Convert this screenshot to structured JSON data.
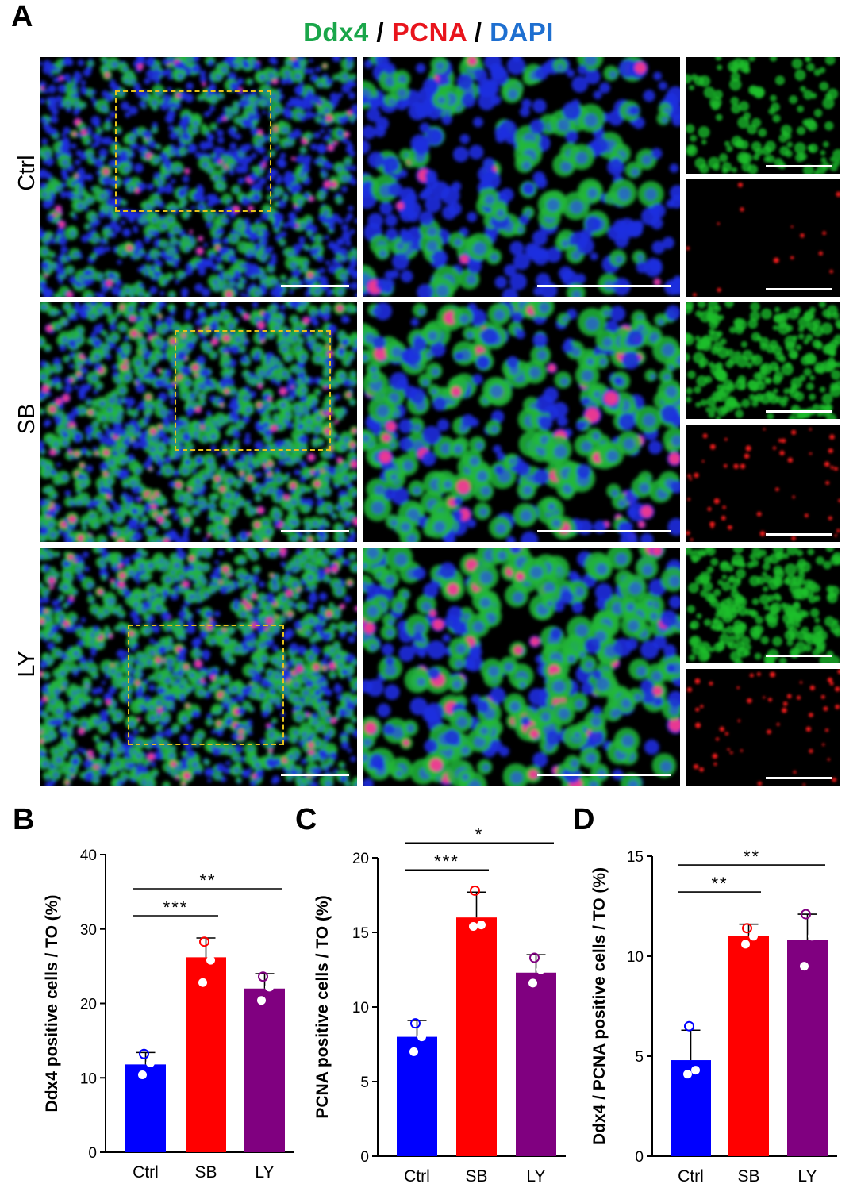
{
  "figure": {
    "panel_labels": [
      "A",
      "B",
      "C",
      "D"
    ],
    "header": {
      "parts": [
        {
          "text": "Ddx4",
          "color": "#1aa64a"
        },
        {
          "text": " / ",
          "color": "#000000"
        },
        {
          "text": "PCNA",
          "color": "#e8141c"
        },
        {
          "text": " / ",
          "color": "#000000"
        },
        {
          "text": "DAPI",
          "color": "#1e6fd0"
        }
      ]
    },
    "row_labels": [
      "Ctrl",
      "SB",
      "LY"
    ],
    "colors": {
      "ctrl": "#0000ff",
      "sb": "#ff0000",
      "ly": "#800080",
      "ddx4": "#1aa64a",
      "pcna": "#e8141c",
      "dapi": "#1e6fd0",
      "roi": "#e6c21a"
    }
  },
  "chart_data": [
    {
      "type": "bar",
      "panel": "B",
      "categories": [
        "Ctrl",
        "SB",
        "LY"
      ],
      "values": [
        11.8,
        26.2,
        22.0
      ],
      "errors": [
        1.6,
        2.6,
        2.0
      ],
      "points": [
        [
          13.2,
          12.0,
          10.4
        ],
        [
          28.3,
          25.8,
          22.8
        ],
        [
          23.6,
          22.2,
          20.4
        ]
      ],
      "ylabel": "Ddx4 positive cells / TO (%)",
      "ylim": [
        0,
        40
      ],
      "yticks": [
        0,
        10,
        20,
        30,
        40
      ],
      "significance": [
        {
          "from": 0,
          "to": 1,
          "label": "***"
        },
        {
          "from": 0,
          "to": 2,
          "label": "**"
        }
      ]
    },
    {
      "type": "bar",
      "panel": "C",
      "categories": [
        "Ctrl",
        "SB",
        "LY"
      ],
      "values": [
        8.0,
        16.0,
        12.3
      ],
      "errors": [
        1.1,
        1.7,
        1.2
      ],
      "points": [
        [
          8.9,
          8.0,
          7.0
        ],
        [
          17.8,
          15.5,
          15.4
        ],
        [
          13.3,
          12.5,
          11.6
        ]
      ],
      "ylabel": "PCNA positive cells / TO (%)",
      "ylim": [
        0,
        20
      ],
      "yticks": [
        0,
        5,
        10,
        15,
        20
      ],
      "significance": [
        {
          "from": 0,
          "to": 1,
          "label": "***"
        },
        {
          "from": 0,
          "to": 2,
          "label": "*"
        }
      ]
    },
    {
      "type": "bar",
      "panel": "D",
      "categories": [
        "Ctrl",
        "SB",
        "LY"
      ],
      "values": [
        4.8,
        11.0,
        10.8
      ],
      "errors": [
        1.5,
        0.6,
        1.3
      ],
      "points": [
        [
          6.5,
          4.3,
          4.1
        ],
        [
          11.4,
          11.0,
          10.6
        ],
        [
          12.1,
          11.0,
          9.5
        ]
      ],
      "ylabel": "Ddx4 / PCNA positive cells / TO (%)",
      "ylim": [
        0,
        15
      ],
      "yticks": [
        0,
        5,
        10,
        15
      ],
      "significance": [
        {
          "from": 0,
          "to": 1,
          "label": "**"
        },
        {
          "from": 0,
          "to": 2,
          "label": "**"
        }
      ]
    }
  ]
}
